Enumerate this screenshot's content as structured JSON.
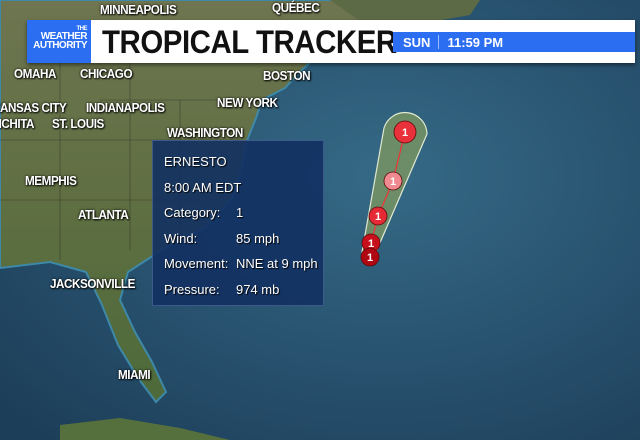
{
  "header": {
    "logo_text": [
      "THE",
      "WEATHER",
      "AUTHORITY"
    ],
    "title": "TROPICAL TRACKER",
    "day": "SUN",
    "time": "11:59 PM",
    "accent_color": "#2b6ef2"
  },
  "map": {
    "cities": [
      "QUÉBEC",
      "MINNEAPOLIS",
      "OMAHA",
      "CHICAGO",
      "BOSTON",
      "NEW YORK",
      "KANSAS CITY",
      "INDIANAPOLIS",
      "WICHITA",
      "ST. LOUIS",
      "WASHINGTON",
      "MEMPHIS",
      "ATLANTA",
      "JACKSONVILLE",
      "MIAMI"
    ],
    "track": [
      {
        "category": "1",
        "color": "#e8313a"
      },
      {
        "category": "1",
        "color": "#f08a90"
      },
      {
        "category": "1",
        "color": "#e52a36"
      },
      {
        "category": "1",
        "color": "#c8101c"
      },
      {
        "category": "1",
        "color": "#b00812"
      }
    ],
    "cone_color": "#7f9a5e"
  },
  "storm": {
    "name": "ERNESTO",
    "time": "8:00 AM EDT",
    "fields": [
      {
        "label": "Category:",
        "value": "1"
      },
      {
        "label": "Wind:",
        "value": "85 mph"
      },
      {
        "label": "Movement:",
        "value": "NNE at 9 mph"
      },
      {
        "label": "Pressure:",
        "value": "974 mb"
      }
    ]
  }
}
